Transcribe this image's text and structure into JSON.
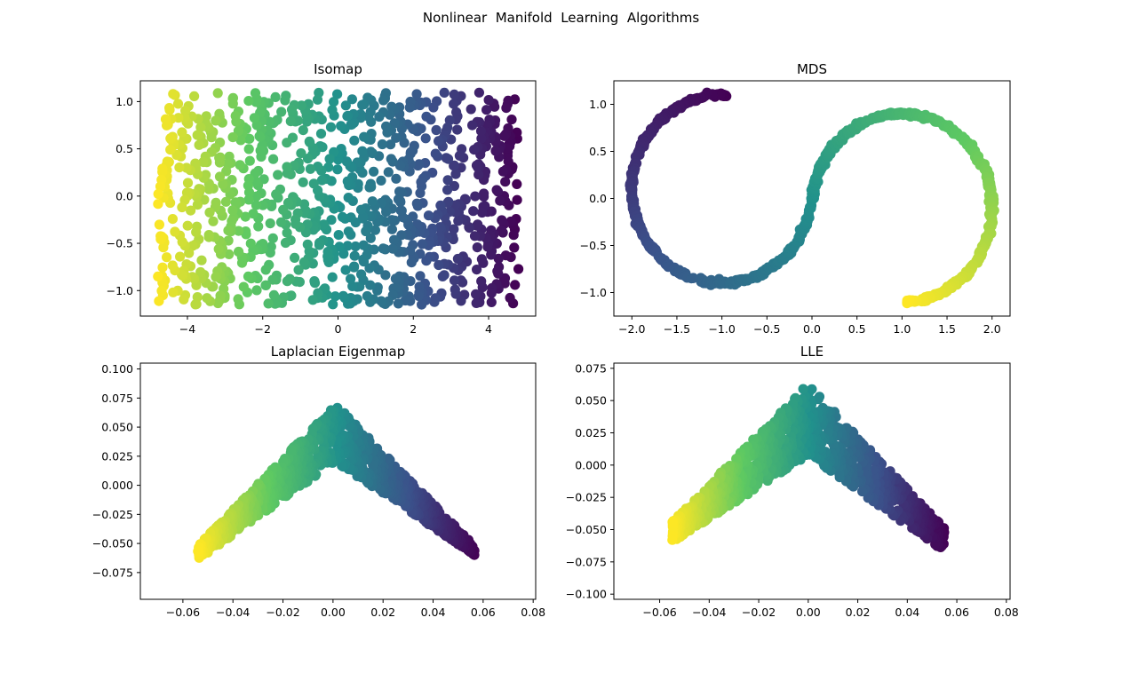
{
  "suptitle": "Nonlinear  Manifold  Learning  Algorithms",
  "colormap": "viridis",
  "colormap_stops": [
    "#440154",
    "#3b528b",
    "#21918c",
    "#5ec962",
    "#fde725"
  ],
  "chart_data": [
    {
      "type": "scatter",
      "title": "Isomap",
      "xlabel": "",
      "ylabel": "",
      "xlim": [
        -5.25,
        5.25
      ],
      "ylim": [
        -1.27,
        1.22
      ],
      "xticks": [
        -4,
        -2,
        0,
        2,
        4
      ],
      "xtick_labels": [
        "−4",
        "−2",
        "0",
        "2",
        "4"
      ],
      "yticks": [
        -1.0,
        -0.5,
        0.0,
        0.5,
        1.0
      ],
      "ytick_labels": [
        "−1.0",
        "−0.5",
        "0.0",
        "0.5",
        "1.0"
      ],
      "grid": false,
      "shape": "rectangle",
      "x_range": [
        -4.8,
        4.8
      ],
      "y_range": [
        -1.15,
        1.1
      ],
      "color_by": "x_descending",
      "n_points": 1000
    },
    {
      "type": "scatter",
      "title": "MDS",
      "xlabel": "",
      "ylabel": "",
      "xlim": [
        -2.2,
        2.2
      ],
      "ylim": [
        -1.25,
        1.25
      ],
      "xticks": [
        -2.0,
        -1.5,
        -1.0,
        -0.5,
        0.0,
        0.5,
        1.0,
        1.5,
        2.0
      ],
      "xtick_labels": [
        "−2.0",
        "−1.5",
        "−1.0",
        "−0.5",
        "0.0",
        "0.5",
        "1.0",
        "1.5",
        "2.0"
      ],
      "yticks": [
        -1.0,
        -0.5,
        0.0,
        0.5,
        1.0
      ],
      "ytick_labels": [
        "−1.0",
        "−0.5",
        "0.0",
        "0.5",
        "1.0"
      ],
      "grid": false,
      "shape": "s_curve",
      "curve": {
        "upper_center": [
          -1.0,
          0.1
        ],
        "lower_center": [
          1.0,
          -0.1
        ],
        "radius": 1.0,
        "start": [
          -0.95,
          1.1
        ],
        "end": [
          0.9,
          -1.12
        ]
      },
      "color_by": "curve_parameter",
      "n_points": 1000
    },
    {
      "type": "scatter",
      "title": "Laplacian Eigenmap",
      "xlabel": "",
      "ylabel": "",
      "xlim": [
        -0.077,
        0.081
      ],
      "ylim": [
        -0.098,
        0.105
      ],
      "xticks": [
        -0.06,
        -0.04,
        -0.02,
        0.0,
        0.02,
        0.04,
        0.06,
        0.08
      ],
      "xtick_labels": [
        "−0.06",
        "−0.04",
        "−0.02",
        "0.00",
        "0.02",
        "0.04",
        "0.06",
        "0.08"
      ],
      "yticks": [
        -0.075,
        -0.05,
        -0.025,
        0.0,
        0.025,
        0.05,
        0.075,
        0.1
      ],
      "ytick_labels": [
        "−0.075",
        "−0.050",
        "−0.025",
        "0.000",
        "0.025",
        "0.050",
        "0.075",
        "0.100"
      ],
      "grid": false,
      "shape": "chevron",
      "ridge": {
        "left": [
          -0.054,
          -0.058
        ],
        "apex": [
          0.001,
          0.045
        ],
        "right": [
          0.057,
          -0.057
        ],
        "half_width": [
          0.006,
          0.025,
          0.004
        ]
      },
      "color_by": "x_descending",
      "n_points": 1000
    },
    {
      "type": "scatter",
      "title": "LLE",
      "xlabel": "",
      "ylabel": "",
      "xlim": [
        -0.0785,
        0.0815
      ],
      "ylim": [
        -0.104,
        0.079
      ],
      "xticks": [
        -0.06,
        -0.04,
        -0.02,
        0.0,
        0.02,
        0.04,
        0.06,
        0.08
      ],
      "xtick_labels": [
        "−0.06",
        "−0.04",
        "−0.02",
        "0.00",
        "0.02",
        "0.04",
        "0.06",
        "0.08"
      ],
      "yticks": [
        -0.1,
        -0.075,
        -0.05,
        -0.025,
        0.0,
        0.025,
        0.05,
        0.075
      ],
      "ytick_labels": [
        "−0.100",
        "−0.075",
        "−0.050",
        "−0.025",
        "0.000",
        "0.025",
        "0.050",
        "0.075"
      ],
      "grid": false,
      "shape": "chevron",
      "ridge": {
        "left": [
          -0.055,
          -0.052
        ],
        "apex": [
          0.0,
          0.035
        ],
        "right": [
          0.055,
          -0.058
        ],
        "half_width": [
          0.008,
          0.028,
          0.009
        ]
      },
      "color_by": "x_descending",
      "n_points": 1000
    }
  ]
}
